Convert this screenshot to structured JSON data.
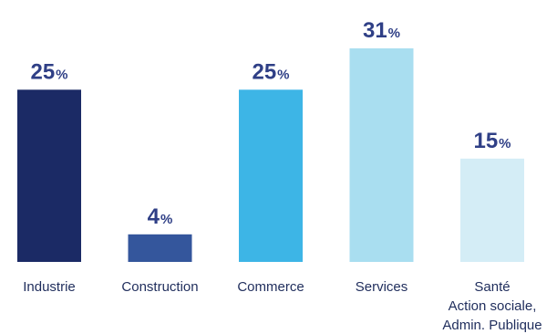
{
  "chart_data": {
    "type": "bar",
    "categories": [
      [
        "Industrie"
      ],
      [
        "Construction"
      ],
      [
        "Commerce"
      ],
      [
        "Services"
      ],
      [
        "Santé",
        "Action sociale,",
        "Admin. Publique"
      ]
    ],
    "values": [
      25,
      4,
      25,
      31,
      15
    ],
    "value_suffix": "%",
    "colors": [
      "#1b2a65",
      "#34569c",
      "#3db5e6",
      "#a9def0",
      "#d4edf6"
    ],
    "ylim": [
      0,
      31
    ],
    "title": "",
    "xlabel": "",
    "ylabel": "",
    "grid": false,
    "legend": "none"
  }
}
